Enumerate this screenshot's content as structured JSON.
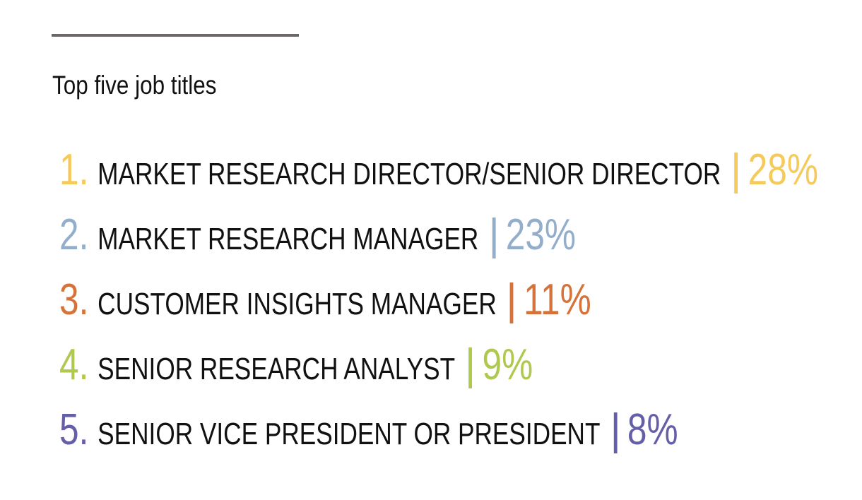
{
  "title": "Top five job titles",
  "items": [
    {
      "rank": "1.",
      "label": "MARKET RESEARCH DIRECTOR/SENIOR DIRECTOR",
      "percent": "28%",
      "color": "#F5C95A"
    },
    {
      "rank": "2.",
      "label": "MARKET RESEARCH MANAGER",
      "percent": "23%",
      "color": "#93AECB"
    },
    {
      "rank": "3.",
      "label": "CUSTOMER INSIGHTS MANAGER",
      "percent": "11%",
      "color": "#D6733A"
    },
    {
      "rank": "4.",
      "label": "SENIOR RESEARCH ANALYST",
      "percent": "9%",
      "color": "#AFC84E"
    },
    {
      "rank": "5.",
      "label": "SENIOR VICE PRESIDENT OR PRESIDENT",
      "percent": "8%",
      "color": "#655FA8"
    }
  ]
}
